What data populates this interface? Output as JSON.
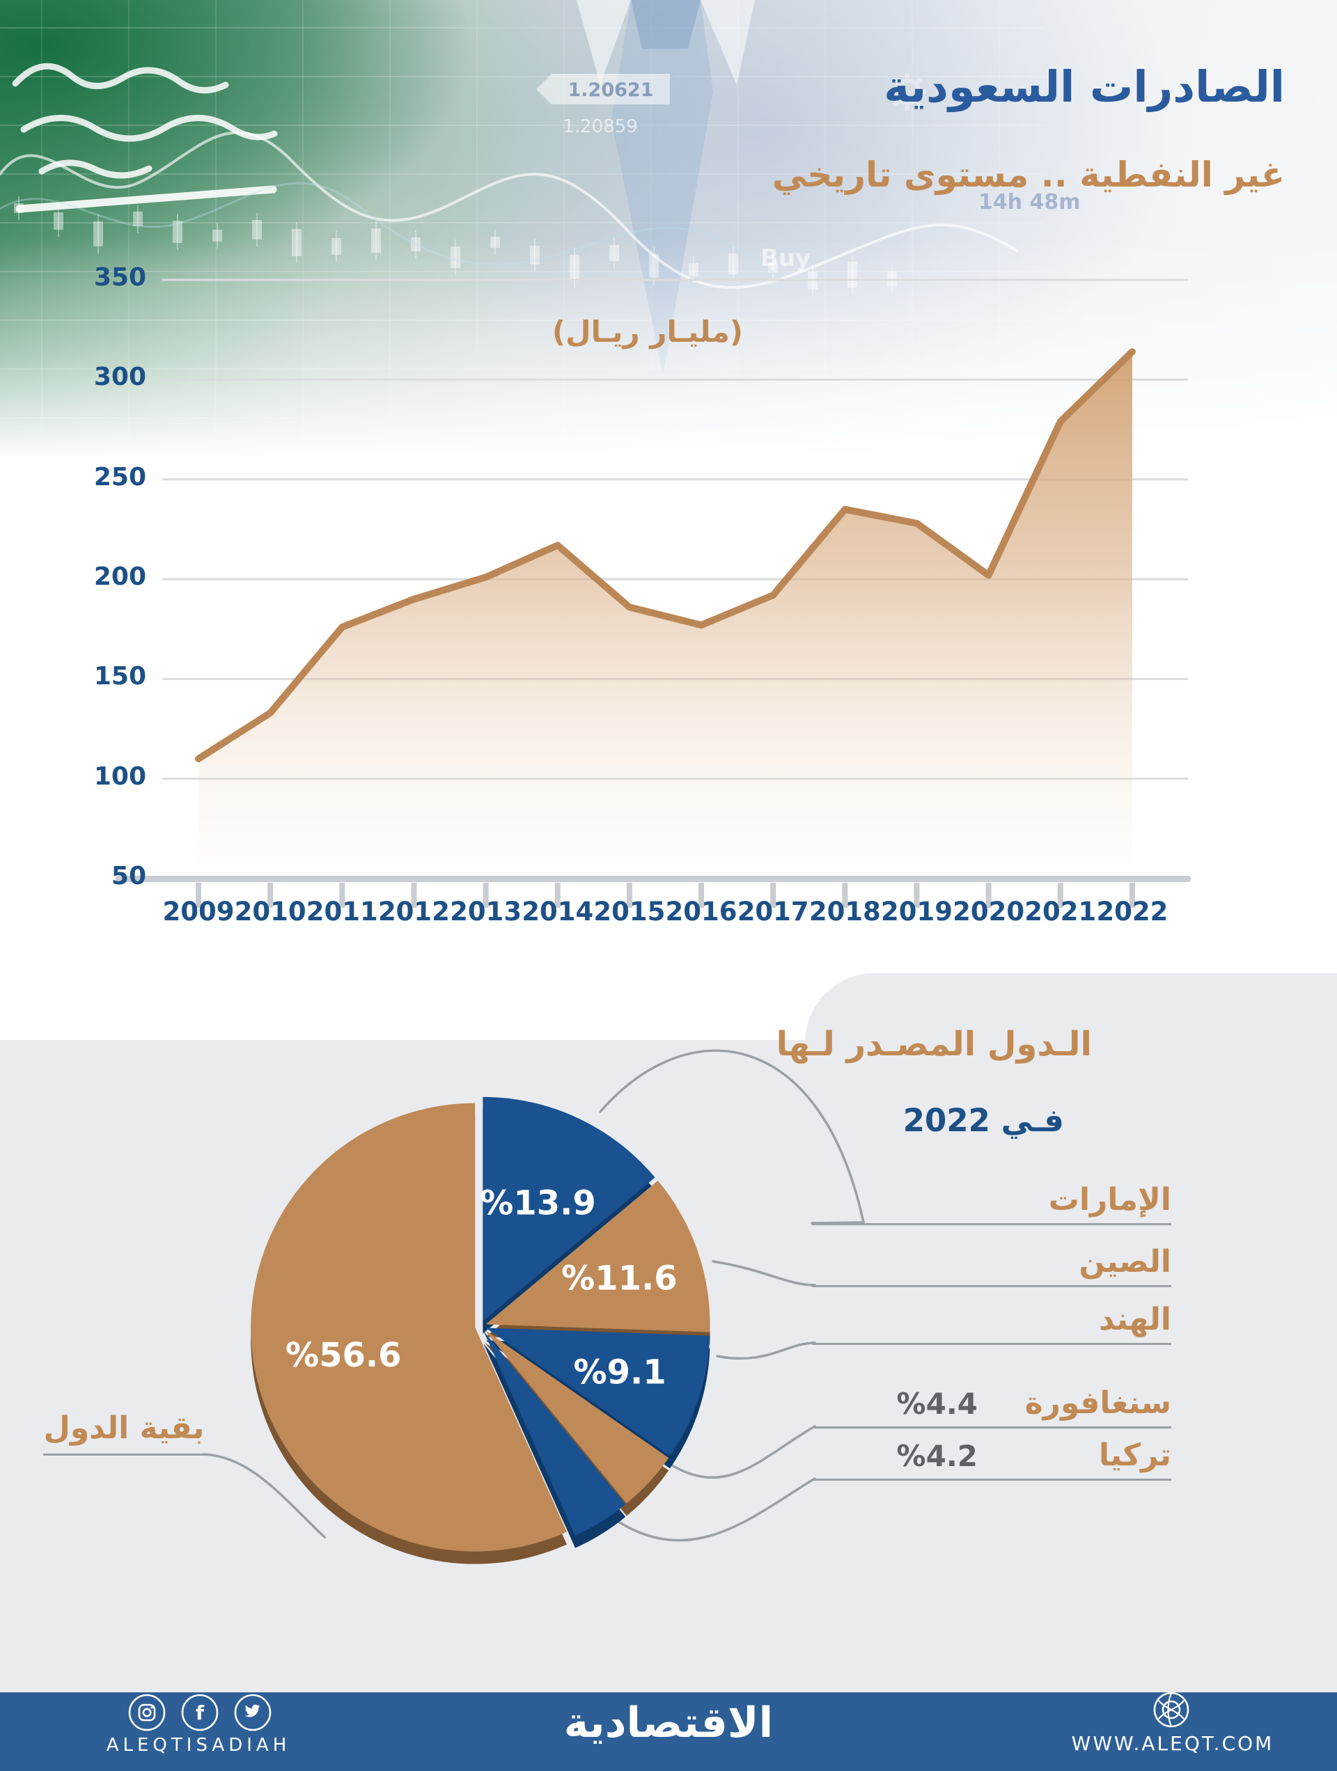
{
  "header": {
    "title": "الصادرات السعودية",
    "subtitle": "غير النفطية .. مستوى تاريخي",
    "unit_label": "(مليـار ريـال)",
    "photo": {
      "timer": "14h 48m",
      "buy": "Buy",
      "quote1": "1.20621",
      "quote2": "1.20859"
    }
  },
  "chart_data": [
    {
      "type": "area",
      "title": "الصادرات السعودية غير النفطية",
      "ylabel": "مليار ريال",
      "x": [
        2009,
        2010,
        2011,
        2012,
        2013,
        2014,
        2015,
        2016,
        2017,
        2018,
        2019,
        2020,
        2021,
        2022
      ],
      "values": [
        110,
        133,
        176,
        190,
        201,
        217,
        186,
        177,
        192,
        235,
        228,
        202,
        279,
        314
      ],
      "ylim": [
        50,
        350
      ],
      "yticks": [
        350,
        300,
        250,
        200,
        150,
        100,
        50
      ],
      "grid": true,
      "legend_position": "none",
      "line_color": "#bc8756",
      "fill_top_color": "#d2a172",
      "axis_color": "#c9ccd0"
    },
    {
      "type": "pie",
      "title": "الدول المصدر لها في 2022",
      "labels": [
        "الإمارات",
        "الصين",
        "الهند",
        "سنغافورة",
        "تركيا",
        "بقية الدول"
      ],
      "values": [
        13.9,
        11.6,
        9.1,
        4.4,
        4.2,
        56.6
      ],
      "pct_labels": [
        "%13.9",
        "%11.6",
        "%9.1",
        "%4.4",
        "%4.2",
        "%56.6"
      ],
      "colors": [
        "#1a5190",
        "#bf8a58",
        "#1a5190",
        "#bf8a58",
        "#1a5190",
        "#bf8a58"
      ],
      "colors_dark": [
        "#0e3a6a",
        "#7c5632",
        "#0e3a6a",
        "#7c5632",
        "#0e3a6a",
        "#7c5632"
      ],
      "label_inside": [
        true,
        true,
        true,
        false,
        false,
        true
      ],
      "label_color": "#ffffff"
    }
  ],
  "pie_section": {
    "heading_line1": "الـدول المصـدر لـها",
    "heading_line2": "فـي  2022",
    "right_labels": [
      {
        "name": "الإمارات",
        "pct": ""
      },
      {
        "name": "الصين",
        "pct": ""
      },
      {
        "name": "الهند",
        "pct": ""
      },
      {
        "name": "سنغافورة",
        "pct": "%4.4"
      },
      {
        "name": "تركيا",
        "pct": "%4.2"
      }
    ],
    "left_label": "بقية الدول"
  },
  "footer": {
    "handle": "ALEQTISADIAH",
    "logo": "الاقتصادية",
    "website": "WWW.ALEQT.COM",
    "icons": [
      "instagram",
      "facebook",
      "twitter",
      "globe"
    ],
    "bar_color": "#2d5f96"
  }
}
